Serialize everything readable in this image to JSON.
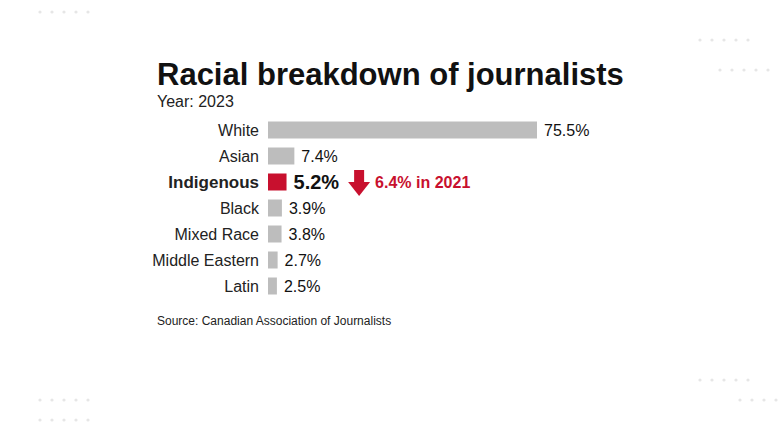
{
  "chart_data": {
    "type": "bar",
    "title": "Racial breakdown of journalists",
    "subtitle": "Year: 2023",
    "categories": [
      "White",
      "Asian",
      "Indigenous",
      "Black",
      "Mixed Race",
      "Middle Eastern",
      "Latin"
    ],
    "values": [
      75.5,
      7.4,
      5.2,
      3.9,
      3.8,
      2.7,
      2.5
    ],
    "value_labels": [
      "75.5%",
      "7.4%",
      "5.2%",
      "3.9%",
      "3.8%",
      "2.7%",
      "2.5%"
    ],
    "colors": [
      "#bdbdbd",
      "#bdbdbd",
      "#c8102e",
      "#bdbdbd",
      "#bdbdbd",
      "#bdbdbd",
      "#bdbdbd"
    ],
    "orientation": "horizontal",
    "data_labels": true,
    "tick_labels": "y",
    "grid": false,
    "xlim": [
      0,
      75.5
    ],
    "annotation": "6.4% in 2021",
    "source": "Source: Canadian Association of Journalists"
  }
}
